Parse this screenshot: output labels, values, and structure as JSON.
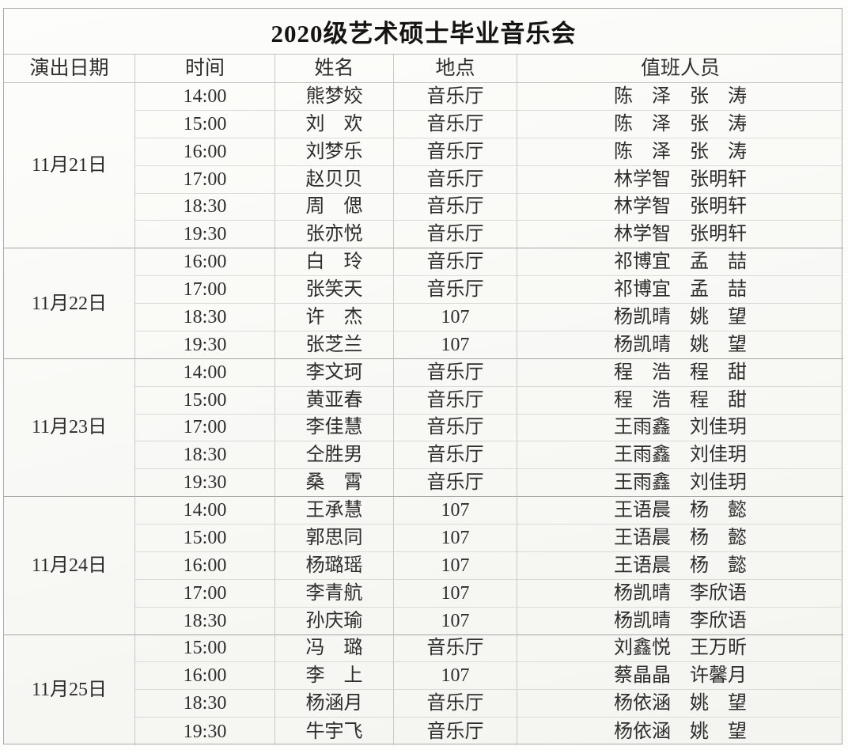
{
  "title": "2020级艺术硕士毕业音乐会",
  "columns": {
    "date": "演出日期",
    "time": "时间",
    "name": "姓名",
    "location": "地点",
    "staff": "值班人员"
  },
  "groups": [
    {
      "date": "11月21日",
      "rows": [
        {
          "time": "14:00",
          "name": "熊梦姣",
          "location": "音乐厅",
          "staff": "陈　泽　张　涛"
        },
        {
          "time": "15:00",
          "name": "刘　欢",
          "location": "音乐厅",
          "staff": "陈　泽　张　涛"
        },
        {
          "time": "16:00",
          "name": "刘梦乐",
          "location": "音乐厅",
          "staff": "陈　泽　张　涛"
        },
        {
          "time": "17:00",
          "name": "赵贝贝",
          "location": "音乐厅",
          "staff": "林学智　张明轩"
        },
        {
          "time": "18:30",
          "name": "周　偲",
          "location": "音乐厅",
          "staff": "林学智　张明轩"
        },
        {
          "time": "19:30",
          "name": "张亦悦",
          "location": "音乐厅",
          "staff": "林学智　张明轩"
        }
      ]
    },
    {
      "date": "11月22日",
      "rows": [
        {
          "time": "16:00",
          "name": "白　玲",
          "location": "音乐厅",
          "staff": "祁博宜　孟　喆"
        },
        {
          "time": "17:00",
          "name": "张笑天",
          "location": "音乐厅",
          "staff": "祁博宜　孟　喆"
        },
        {
          "time": "18:30",
          "name": "许　杰",
          "location": "107",
          "staff": "杨凯晴　姚　望"
        },
        {
          "time": "19:30",
          "name": "张芝兰",
          "location": "107",
          "staff": "杨凯晴　姚　望"
        }
      ]
    },
    {
      "date": "11月23日",
      "rows": [
        {
          "time": "14:00",
          "name": "李文珂",
          "location": "音乐厅",
          "staff": "程　浩　程　甜"
        },
        {
          "time": "15:00",
          "name": "黄亚春",
          "location": "音乐厅",
          "staff": "程　浩　程　甜"
        },
        {
          "time": "17:00",
          "name": "李佳慧",
          "location": "音乐厅",
          "staff": "王雨鑫　刘佳玥"
        },
        {
          "time": "18:30",
          "name": "仝胜男",
          "location": "音乐厅",
          "staff": "王雨鑫　刘佳玥"
        },
        {
          "time": "19:30",
          "name": "桑　霄",
          "location": "音乐厅",
          "staff": "王雨鑫　刘佳玥"
        }
      ]
    },
    {
      "date": "11月24日",
      "rows": [
        {
          "time": "14:00",
          "name": "王承慧",
          "location": "107",
          "staff": "王语晨　杨　懿"
        },
        {
          "time": "15:00",
          "name": "郭思同",
          "location": "107",
          "staff": "王语晨　杨　懿"
        },
        {
          "time": "16:00",
          "name": "杨璐瑶",
          "location": "107",
          "staff": "王语晨　杨　懿"
        },
        {
          "time": "17:00",
          "name": "李青航",
          "location": "107",
          "staff": "杨凯晴　李欣语"
        },
        {
          "time": "18:30",
          "name": "孙庆瑜",
          "location": "107",
          "staff": "杨凯晴　李欣语"
        }
      ]
    },
    {
      "date": "11月25日",
      "rows": [
        {
          "time": "15:00",
          "name": "冯　璐",
          "location": "音乐厅",
          "staff": "刘鑫悦　王万昕"
        },
        {
          "time": "16:00",
          "name": "李　上",
          "location": "107",
          "staff": "蔡晶晶　许馨月"
        },
        {
          "time": "18:30",
          "name": "杨涵月",
          "location": "音乐厅",
          "staff": "杨依涵　姚　望"
        },
        {
          "time": "19:30",
          "name": "牛宇飞",
          "location": "音乐厅",
          "staff": "杨依涵　姚　望"
        }
      ]
    }
  ]
}
